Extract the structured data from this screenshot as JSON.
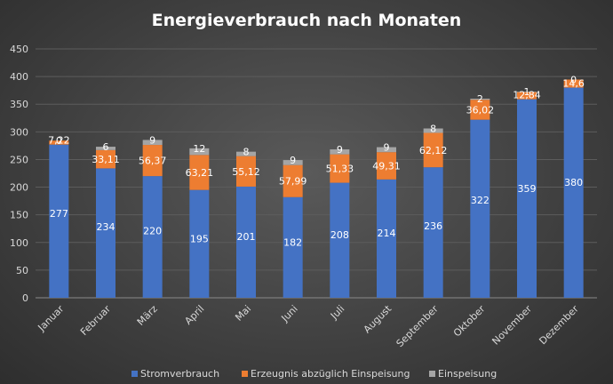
{
  "chart_data": {
    "type": "bar",
    "stacked": true,
    "title": "Energieverbrauch nach Monaten",
    "xlabel": "",
    "ylabel": "",
    "ylim": [
      0,
      450
    ],
    "yticks": [
      0,
      50,
      100,
      150,
      200,
      250,
      300,
      350,
      400,
      450
    ],
    "grid": true,
    "legend_position": "bottom",
    "categories": [
      "Januar",
      "Februar",
      "März",
      "April",
      "Mai",
      "Juni",
      "Juli",
      "August",
      "September",
      "Oktober",
      "November",
      "Dezember"
    ],
    "series": [
      {
        "name": "Stromverbrauch",
        "color": "#4472C4",
        "values": [
          277,
          234,
          220,
          195,
          201,
          182,
          208,
          214,
          236,
          322,
          359,
          380
        ],
        "labels": [
          "277",
          "234",
          "220",
          "195",
          "201",
          "182",
          "208",
          "214",
          "236",
          "322",
          "359",
          "380"
        ]
      },
      {
        "name": "Erzeugnis abzüglich Einspeisung",
        "color": "#ED7D31",
        "values": [
          7.22,
          33.11,
          56.37,
          63.21,
          55.12,
          57.99,
          51.33,
          49.31,
          62.12,
          36.02,
          12.84,
          14.6
        ],
        "labels": [
          "7,22",
          "33,11",
          "56,37",
          "63,21",
          "55,12",
          "57,99",
          "51,33",
          "49,31",
          "62,12",
          "36,02",
          "12,84",
          "14,6"
        ]
      },
      {
        "name": "Einspeisung",
        "color": "#A5A5A5",
        "values": [
          0,
          6,
          9,
          12,
          8,
          9,
          9,
          9,
          8,
          2,
          1,
          0
        ],
        "labels": [
          "0",
          "6",
          "9",
          "12",
          "8",
          "9",
          "9",
          "9",
          "8",
          "2",
          "1",
          "0"
        ]
      }
    ]
  }
}
